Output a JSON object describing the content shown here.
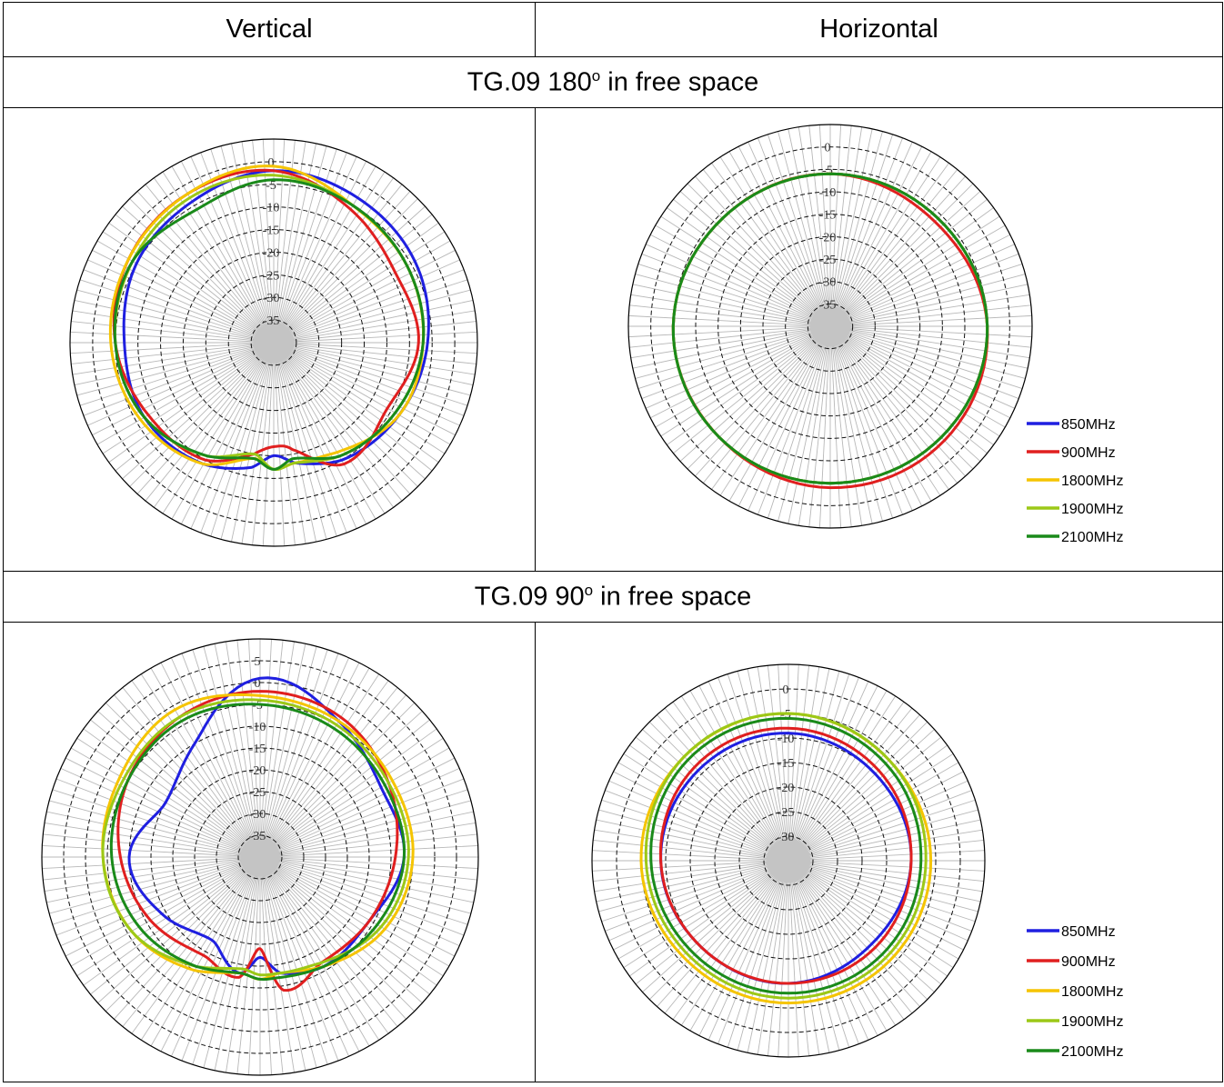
{
  "header": {
    "vertical": "Vertical",
    "horizontal": "Horizontal"
  },
  "sections": [
    {
      "prefix": "TG.09 180",
      "sup": "o",
      "suffix": " in free space"
    },
    {
      "prefix": "TG.09 90",
      "sup": "o",
      "suffix": " in free space"
    }
  ],
  "colors": {
    "850MHz": "#1f1fe0",
    "900MHz": "#e01f1f",
    "1800MHz": "#f5c400",
    "1900MHz": "#9cc817",
    "2100MHz": "#1a8a1a"
  },
  "legend": [
    "850MHz",
    "900MHz",
    "1800MHz",
    "1900MHz",
    "2100MHz"
  ],
  "chart_data": [
    {
      "type": "line",
      "subtype": "polar",
      "panel": "180 vertical",
      "r_ticks": [
        0,
        -5,
        -10,
        -15,
        -20,
        -25,
        -30,
        -35
      ],
      "rlim": [
        -40,
        5
      ],
      "legend": "none",
      "theta_deg": [
        0,
        30,
        60,
        90,
        120,
        150,
        170,
        180,
        190,
        210,
        240,
        270,
        300,
        330
      ],
      "series": [
        {
          "name": "850MHz",
          "values": [
            -2,
            -3,
            -4,
            -6,
            -8,
            -10,
            -13,
            -15,
            -12,
            -9,
            -7,
            -7,
            -5,
            -4
          ]
        },
        {
          "name": "900MHz",
          "values": [
            -2,
            -6,
            -9,
            -8,
            -11,
            -9,
            -16,
            -17,
            -15,
            -10,
            -8,
            -5,
            -3,
            -2
          ]
        },
        {
          "name": "1800MHz",
          "values": [
            -1,
            -5,
            -6,
            -7,
            -8,
            -12,
            -13,
            -12,
            -14,
            -9,
            -6,
            -4,
            -3,
            -2
          ]
        },
        {
          "name": "1900MHz",
          "values": [
            -3,
            -5,
            -6,
            -7,
            -9,
            -11,
            -13,
            -12,
            -15,
            -11,
            -7,
            -5,
            -4,
            -3
          ]
        },
        {
          "name": "2100MHz",
          "values": [
            -4,
            -5,
            -6,
            -7,
            -9,
            -11,
            -14,
            -12,
            -14,
            -11,
            -7,
            -5,
            -4,
            -6
          ]
        }
      ]
    },
    {
      "type": "line",
      "subtype": "polar",
      "panel": "180 horizontal",
      "r_ticks": [
        0,
        -5,
        -10,
        -15,
        -20,
        -25,
        -30,
        -35
      ],
      "rlim": [
        -40,
        5
      ],
      "legend": "bottom-right",
      "theta_deg": [
        0,
        45,
        90,
        135,
        180,
        225,
        270,
        315
      ],
      "series": [
        {
          "name": "850MHz",
          "values": [
            -6,
            -6,
            -5,
            -5,
            -5,
            -5,
            -5,
            -6
          ]
        },
        {
          "name": "900MHz",
          "values": [
            -6,
            -7,
            -5,
            -4,
            -4,
            -5,
            -5,
            -6
          ]
        },
        {
          "name": "1800MHz",
          "values": [
            -6,
            -6,
            -5,
            -5,
            -5,
            -5,
            -5,
            -6
          ]
        },
        {
          "name": "1900MHz",
          "values": [
            -6,
            -6,
            -5,
            -5,
            -5,
            -5,
            -5,
            -6
          ]
        },
        {
          "name": "2100MHz",
          "values": [
            -6,
            -6,
            -5,
            -5,
            -5,
            -5,
            -5,
            -6
          ]
        }
      ]
    },
    {
      "type": "line",
      "subtype": "polar",
      "panel": "90 vertical",
      "r_ticks": [
        5,
        0,
        -5,
        -10,
        -15,
        -20,
        -25,
        -30,
        -35
      ],
      "rlim": [
        -40,
        10
      ],
      "legend": "none",
      "theta_deg": [
        0,
        30,
        60,
        90,
        120,
        150,
        170,
        180,
        190,
        210,
        240,
        270,
        300,
        330
      ],
      "series": [
        {
          "name": "850MHz",
          "values": [
            1,
            -4,
            -8,
            -7,
            -11,
            -11,
            -13,
            -17,
            -13,
            -18,
            -14,
            -10,
            -15,
            -10
          ]
        },
        {
          "name": "900MHz",
          "values": [
            -2,
            -3,
            -6,
            -9,
            -11,
            -12,
            -9,
            -19,
            -12,
            -14,
            -11,
            -8,
            -5,
            -3
          ]
        },
        {
          "name": "1800MHz",
          "values": [
            -3,
            -4,
            -5,
            -5,
            -7,
            -11,
            -13,
            -12,
            -13,
            -10,
            -6,
            -4,
            -3,
            -1
          ]
        },
        {
          "name": "1900MHz",
          "values": [
            -4,
            -5,
            -6,
            -6,
            -8,
            -12,
            -13,
            -13,
            -14,
            -11,
            -6,
            -4,
            -4,
            -3
          ]
        },
        {
          "name": "2100MHz",
          "values": [
            -5,
            -6,
            -7,
            -7,
            -9,
            -11,
            -12,
            -12,
            -13,
            -11,
            -8,
            -6,
            -5,
            -4
          ]
        }
      ]
    },
    {
      "type": "line",
      "subtype": "polar",
      "panel": "90 horizontal",
      "r_ticks": [
        0,
        -5,
        -10,
        -15,
        -20,
        -25,
        -30
      ],
      "rlim": [
        -35,
        5
      ],
      "legend": "bottom-right",
      "theta_deg": [
        0,
        45,
        90,
        135,
        180,
        225,
        270,
        315
      ],
      "series": [
        {
          "name": "850MHz",
          "values": [
            -9,
            -10,
            -10,
            -11,
            -10,
            -10,
            -9,
            -9
          ]
        },
        {
          "name": "900MHz",
          "values": [
            -8,
            -9,
            -10,
            -10,
            -10,
            -10,
            -9,
            -8
          ]
        },
        {
          "name": "1800MHz",
          "values": [
            -5,
            -6,
            -6,
            -6,
            -6,
            -6,
            -5,
            -5
          ]
        },
        {
          "name": "1900MHz",
          "values": [
            -5,
            -6,
            -7,
            -7,
            -7,
            -7,
            -6,
            -5
          ]
        },
        {
          "name": "2100MHz",
          "values": [
            -6,
            -7,
            -8,
            -8,
            -8,
            -8,
            -7,
            -6
          ]
        }
      ]
    }
  ]
}
